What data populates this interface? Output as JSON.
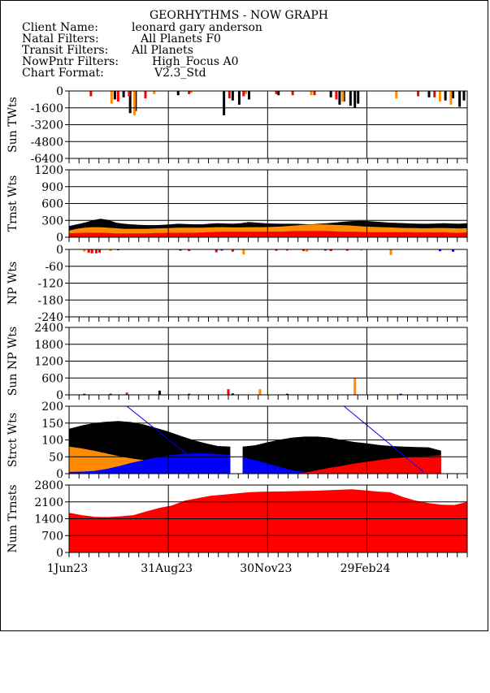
{
  "header": {
    "title": "GEORHYTHMS - NOW GRAPH",
    "rows": [
      {
        "label": "Client Name:",
        "value": "leonard gary anderson"
      },
      {
        "label": "Natal Filters:",
        "value": "All Planets F0"
      },
      {
        "label": "Transit Filters:",
        "value": "All Planets"
      },
      {
        "label": "NowPntr Filters:",
        "value": "High_Focus A0"
      },
      {
        "label": "Chart Format:",
        "value": "V2.3_Std"
      }
    ]
  },
  "colors": {
    "black": "#000000",
    "red": "#ff0000",
    "orange": "#ff8c00",
    "blue": "#0000ff",
    "grid": "#000000"
  },
  "x_axis": {
    "start": "1Jun23",
    "end": "31May24",
    "tick_labels": [
      "1Jun23",
      "31Aug23",
      "30Nov23",
      "29Feb24"
    ],
    "tick_days": [
      0,
      91,
      182,
      273
    ],
    "total_days": 365
  },
  "chart_data": [
    {
      "type": "bar",
      "ylabel": "Sun TWts",
      "ylim": [
        -6400,
        0
      ],
      "yticks": [
        0,
        -1600,
        -3200,
        -4800,
        -6400
      ],
      "ytick_labels": [
        "0",
        "-1600",
        "-3200",
        "-4800",
        "-6400"
      ],
      "series": [
        {
          "color": "black",
          "spikes": [
            [
              42,
              -800
            ],
            [
              50,
              -600
            ],
            [
              56,
              -2100
            ],
            [
              61,
              -1900
            ],
            [
              100,
              -400
            ],
            [
              142,
              -2300
            ],
            [
              150,
              -900
            ],
            [
              156,
              -1300
            ],
            [
              165,
              -800
            ],
            [
              192,
              -400
            ],
            [
              240,
              -600
            ],
            [
              248,
              -1300
            ],
            [
              252,
              -1000
            ],
            [
              258,
              -1400
            ],
            [
              262,
              -1600
            ],
            [
              265,
              -1200
            ],
            [
              330,
              -600
            ],
            [
              345,
              -900
            ],
            [
              352,
              -700
            ],
            [
              358,
              -1500
            ],
            [
              362,
              -900
            ]
          ]
        },
        {
          "color": "orange",
          "spikes": [
            [
              39,
              -1200
            ],
            [
              60,
              -2300
            ],
            [
              78,
              -300
            ],
            [
              112,
              -200
            ],
            [
              162,
              -300
            ],
            [
              222,
              -400
            ],
            [
              251,
              -1000
            ],
            [
              300,
              -700
            ],
            [
              340,
              -1000
            ],
            [
              350,
              -1300
            ]
          ]
        },
        {
          "color": "red",
          "spikes": [
            [
              20,
              -500
            ],
            [
              45,
              -1000
            ],
            [
              55,
              -500
            ],
            [
              70,
              -700
            ],
            [
              110,
              -300
            ],
            [
              147,
              -700
            ],
            [
              160,
              -500
            ],
            [
              190,
              -300
            ],
            [
              205,
              -400
            ],
            [
              225,
              -400
            ],
            [
              245,
              -800
            ],
            [
              320,
              -500
            ],
            [
              335,
              -600
            ]
          ]
        }
      ]
    },
    {
      "type": "area",
      "ylabel": "Trnst Wts",
      "ylim": [
        0,
        1200
      ],
      "yticks": [
        0,
        300,
        600,
        900,
        1200
      ],
      "ytick_labels": [
        "0",
        "300",
        "600",
        "900",
        "1200"
      ],
      "series": [
        {
          "color": "black",
          "values": [
            200,
            230,
            260,
            300,
            330,
            310,
            260,
            240,
            230,
            220,
            215,
            215,
            220,
            230,
            240,
            235,
            230,
            230,
            240,
            250,
            245,
            240,
            250,
            270,
            260,
            250,
            245,
            240,
            240,
            240,
            235,
            230,
            240,
            250,
            260,
            275,
            285,
            290,
            290,
            280,
            270,
            260,
            255,
            250,
            245,
            240,
            240,
            245,
            250,
            245,
            240,
            250
          ]
        },
        {
          "color": "orange",
          "values": [
            120,
            150,
            170,
            180,
            180,
            170,
            160,
            150,
            150,
            150,
            150,
            155,
            160,
            165,
            170,
            170,
            170,
            170,
            175,
            180,
            180,
            175,
            175,
            180,
            180,
            180,
            185,
            190,
            200,
            210,
            220,
            225,
            230,
            225,
            220,
            215,
            210,
            200,
            190,
            185,
            180,
            175,
            170,
            165,
            165,
            160,
            160,
            165,
            165,
            160,
            155,
            160
          ]
        },
        {
          "color": "red",
          "values": [
            70,
            75,
            80,
            80,
            80,
            75,
            70,
            70,
            70,
            70,
            70,
            75,
            75,
            80,
            80,
            80,
            80,
            85,
            90,
            95,
            100,
            100,
            100,
            100,
            100,
            100,
            100,
            100,
            105,
            110,
            110,
            110,
            110,
            110,
            105,
            100,
            100,
            95,
            90,
            90,
            90,
            90,
            90,
            90,
            85,
            85,
            85,
            85,
            85,
            80,
            80,
            85
          ]
        }
      ]
    },
    {
      "type": "bar",
      "ylabel": "NP Wts",
      "ylim": [
        -240,
        0
      ],
      "yticks": [
        0,
        -60,
        -120,
        -180,
        -240
      ],
      "ytick_labels": [
        "0",
        "-60",
        "-120",
        "-180",
        "-240"
      ],
      "series": [
        {
          "color": "red",
          "spikes": [
            [
              18,
              -12
            ],
            [
              21,
              -14
            ],
            [
              25,
              -14
            ],
            [
              28,
              -12
            ],
            [
              110,
              -6
            ],
            [
              135,
              -10
            ],
            [
              150,
              -8
            ],
            [
              190,
              -5
            ],
            [
              200,
              -4
            ],
            [
              215,
              -6
            ],
            [
              240,
              -6
            ],
            [
              255,
              -5
            ]
          ]
        },
        {
          "color": "orange",
          "spikes": [
            [
              14,
              -8
            ],
            [
              38,
              -6
            ],
            [
              160,
              -18
            ],
            [
              218,
              -8
            ],
            [
              268,
              -4
            ],
            [
              295,
              -20
            ]
          ]
        },
        {
          "color": "black",
          "spikes": [
            [
              45,
              -3
            ],
            [
              102,
              -4
            ],
            [
              240,
              -3
            ]
          ]
        },
        {
          "color": "blue",
          "spikes": [
            [
              140,
              -4
            ],
            [
              235,
              -4
            ],
            [
              340,
              -6
            ],
            [
              352,
              -8
            ]
          ]
        }
      ]
    },
    {
      "type": "bar",
      "ylabel": "Sun NP Wts",
      "ylim": [
        0,
        2400
      ],
      "yticks": [
        0,
        600,
        1200,
        1800,
        2400
      ],
      "ytick_labels": [
        "0",
        "600",
        "1200",
        "1800",
        "2400"
      ],
      "series": [
        {
          "color": "orange",
          "spikes": [
            [
              175,
              200
            ],
            [
              262,
              600
            ]
          ]
        },
        {
          "color": "red",
          "spikes": [
            [
              53,
              80
            ],
            [
              146,
              200
            ]
          ]
        },
        {
          "color": "black",
          "spikes": [
            [
              83,
              150
            ],
            [
              150,
              50
            ],
            [
              200,
              40
            ]
          ]
        },
        {
          "color": "blue",
          "spikes": [
            [
              14,
              40
            ],
            [
              38,
              40
            ],
            [
              110,
              40
            ],
            [
              304,
              40
            ]
          ]
        }
      ]
    },
    {
      "type": "area",
      "ylabel": "Strct Wts",
      "ylim": [
        0,
        200
      ],
      "yticks": [
        0,
        50,
        100,
        150,
        200
      ],
      "ytick_labels": [
        "0",
        "50",
        "100",
        "150",
        "200"
      ],
      "gap_days": [
        148,
        159
      ],
      "last_day": 341,
      "series": [
        {
          "color": "black",
          "values": [
            133,
            143,
            150,
            154,
            156,
            153,
            146,
            136,
            125,
            112,
            100,
            90,
            82,
            80,
            80,
            84,
            93,
            101,
            107,
            110,
            110,
            107,
            100,
            94,
            90,
            85,
            82,
            80,
            79,
            78,
            68
          ]
        },
        {
          "color": "orange",
          "values": [
            80,
            75,
            68,
            60,
            52,
            45,
            40,
            34,
            28,
            22,
            16,
            10,
            5,
            2,
            0,
            0,
            0,
            0,
            0,
            0,
            0,
            0,
            0,
            0,
            0,
            0,
            0,
            0,
            0,
            0,
            0
          ]
        },
        {
          "color": "blue",
          "values": [
            5,
            6,
            8,
            14,
            22,
            32,
            40,
            48,
            54,
            58,
            60,
            60,
            58,
            55,
            48,
            40,
            30,
            20,
            10,
            5,
            3,
            3,
            3,
            6,
            8,
            10,
            12,
            12,
            12,
            12,
            12
          ]
        },
        {
          "color": "red",
          "values": [
            0,
            0,
            0,
            0,
            0,
            0,
            0,
            0,
            0,
            0,
            0,
            0,
            0,
            0,
            0,
            0,
            0,
            0,
            0,
            3,
            10,
            17,
            23,
            30,
            35,
            40,
            45,
            48,
            50,
            52,
            55
          ]
        }
      ],
      "trend_lines": [
        [
          [
            53,
            200
          ],
          [
            111,
            50
          ]
        ],
        [
          [
            252,
            200
          ],
          [
            325,
            5
          ]
        ]
      ]
    },
    {
      "type": "area",
      "ylabel": "Num Trnsts",
      "ylim": [
        0,
        2800
      ],
      "yticks": [
        0,
        700,
        1400,
        2100,
        2800
      ],
      "ytick_labels": [
        "0",
        "700",
        "1400",
        "2100",
        "2800"
      ],
      "series": [
        {
          "color": "red",
          "values": [
            1650,
            1550,
            1480,
            1470,
            1500,
            1550,
            1700,
            1850,
            1950,
            2150,
            2250,
            2350,
            2400,
            2450,
            2500,
            2520,
            2530,
            2540,
            2550,
            2560,
            2580,
            2600,
            2620,
            2580,
            2530,
            2500,
            2300,
            2150,
            2050,
            1980,
            1970,
            2100
          ]
        }
      ]
    }
  ]
}
